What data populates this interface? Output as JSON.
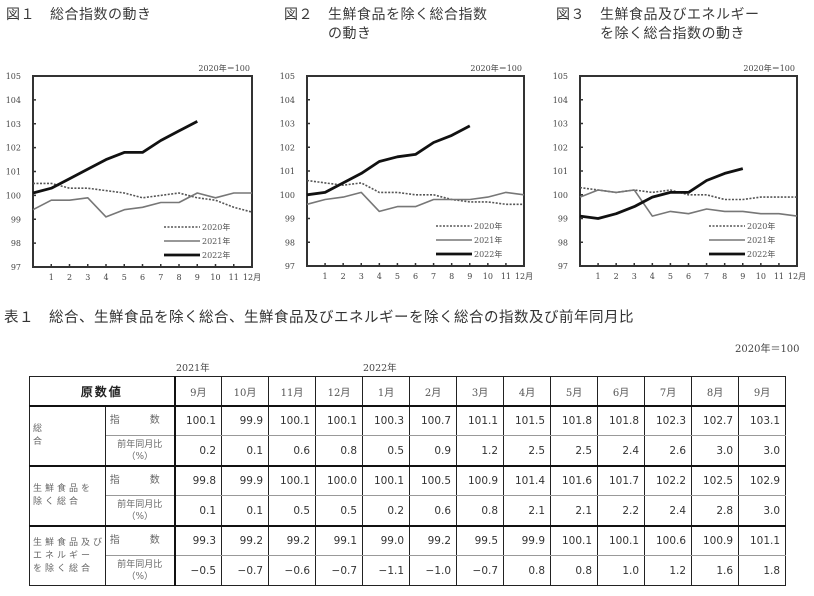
{
  "figures": [
    {
      "id": "fig1",
      "number": "図１",
      "title_lines": [
        "総合指数の動き"
      ],
      "unit": "2020年＝100"
    },
    {
      "id": "fig2",
      "number": "図２",
      "title_lines": [
        "生鮮食品を除く総合指数",
        "の動き"
      ],
      "unit": "2020年＝100"
    },
    {
      "id": "fig3",
      "number": "図３",
      "title_lines": [
        "生鮮食品及びエネルギー",
        "を除く総合指数の動き"
      ],
      "unit": "2020年＝100"
    }
  ],
  "chart_data": [
    {
      "type": "line",
      "title": "図１ 総合指数の動き",
      "unit_note": "2020年＝100",
      "x": [
        "",
        "1",
        "2",
        "3",
        "4",
        "5",
        "6",
        "7",
        "8",
        "9",
        "10",
        "11",
        "12月"
      ],
      "yticks": [
        97,
        98,
        99,
        100,
        101,
        102,
        103,
        104,
        105
      ],
      "ylim": [
        97,
        105
      ],
      "grid": false,
      "legend_position": "lower right",
      "series": [
        {
          "name": "2020年",
          "style": "dotted",
          "values": [
            100.5,
            100.5,
            100.3,
            100.3,
            100.2,
            100.1,
            99.9,
            100.0,
            100.1,
            99.9,
            99.8,
            99.5,
            99.3
          ]
        },
        {
          "name": "2021年",
          "style": "thin",
          "values": [
            99.4,
            99.8,
            99.8,
            99.9,
            99.1,
            99.4,
            99.5,
            99.7,
            99.7,
            100.1,
            99.9,
            100.1,
            100.1
          ]
        },
        {
          "name": "2022年",
          "style": "thick",
          "values": [
            100.1,
            100.3,
            100.7,
            101.1,
            101.5,
            101.8,
            101.8,
            102.3,
            102.7,
            103.1
          ]
        }
      ]
    },
    {
      "type": "line",
      "title": "図２ 生鮮食品を除く総合指数の動き",
      "unit_note": "2020年＝100",
      "x": [
        "",
        "1",
        "2",
        "3",
        "4",
        "5",
        "6",
        "7",
        "8",
        "9",
        "10",
        "11",
        "12月"
      ],
      "yticks": [
        97,
        98,
        99,
        100,
        101,
        102,
        103,
        104,
        105
      ],
      "ylim": [
        97,
        105
      ],
      "grid": false,
      "legend_position": "lower right",
      "series": [
        {
          "name": "2020年",
          "style": "dotted",
          "values": [
            100.6,
            100.5,
            100.4,
            100.5,
            100.1,
            100.1,
            100.0,
            100.0,
            99.8,
            99.7,
            99.7,
            99.6,
            99.6
          ]
        },
        {
          "name": "2021年",
          "style": "thin",
          "values": [
            99.6,
            99.8,
            99.9,
            100.1,
            99.3,
            99.5,
            99.5,
            99.8,
            99.8,
            99.8,
            99.9,
            100.1,
            100.0
          ]
        },
        {
          "name": "2022年",
          "style": "thick",
          "values": [
            100.0,
            100.1,
            100.5,
            100.9,
            101.4,
            101.6,
            101.7,
            102.2,
            102.5,
            102.9
          ]
        }
      ]
    },
    {
      "type": "line",
      "title": "図３ 生鮮食品及びエネルギーを除く総合指数の動き",
      "unit_note": "2020年＝100",
      "x": [
        "",
        "1",
        "2",
        "3",
        "4",
        "5",
        "6",
        "7",
        "8",
        "9",
        "10",
        "11",
        "12月"
      ],
      "yticks": [
        97,
        98,
        99,
        100,
        101,
        102,
        103,
        104,
        105
      ],
      "ylim": [
        97,
        105
      ],
      "grid": false,
      "legend_position": "lower right",
      "series": [
        {
          "name": "2020年",
          "style": "dotted",
          "values": [
            100.3,
            100.2,
            100.1,
            100.2,
            100.1,
            100.2,
            100.0,
            100.0,
            99.8,
            99.8,
            99.9,
            99.9,
            99.9
          ]
        },
        {
          "name": "2021年",
          "style": "thin",
          "values": [
            99.9,
            100.2,
            100.1,
            100.2,
            99.1,
            99.3,
            99.2,
            99.4,
            99.3,
            99.3,
            99.2,
            99.2,
            99.1
          ]
        },
        {
          "name": "2022年",
          "style": "thick",
          "values": [
            99.1,
            99.0,
            99.2,
            99.5,
            99.9,
            100.1,
            100.1,
            100.6,
            100.9,
            101.1
          ]
        }
      ]
    }
  ],
  "table": {
    "title": "表１　総合、生鮮食品を除く総合、生鮮食品及びエネルギーを除く総合の指数及び前年同月比",
    "unit": "2020年＝100",
    "year_labels": [
      {
        "label": "2021年",
        "at_col": 0
      },
      {
        "label": "2022年",
        "at_col": 4
      }
    ],
    "corner_header": "原数値",
    "months": [
      "9月",
      "10月",
      "11月",
      "12月",
      "1月",
      "2月",
      "3月",
      "4月",
      "5月",
      "6月",
      "7月",
      "8月",
      "9月"
    ],
    "index_label": "指　数",
    "yoy_label_line1": "前年同月比",
    "yoy_label_line2": "（%）",
    "groups": [
      {
        "name_lines": [
          "総　　　　　合"
        ],
        "index": [
          "100.1",
          "99.9",
          "100.1",
          "100.1",
          "100.3",
          "100.7",
          "101.1",
          "101.5",
          "101.8",
          "101.8",
          "102.3",
          "102.7",
          "103.1"
        ],
        "yoy": [
          "0.2",
          "0.1",
          "0.6",
          "0.8",
          "0.5",
          "0.9",
          "1.2",
          "2.5",
          "2.5",
          "2.4",
          "2.6",
          "3.0",
          "3.0"
        ]
      },
      {
        "name_lines": [
          "生鮮食品を",
          "除く総合"
        ],
        "index": [
          "99.8",
          "99.9",
          "100.1",
          "100.0",
          "100.1",
          "100.5",
          "100.9",
          "101.4",
          "101.6",
          "101.7",
          "102.2",
          "102.5",
          "102.9"
        ],
        "yoy": [
          "0.1",
          "0.1",
          "0.5",
          "0.5",
          "0.2",
          "0.6",
          "0.8",
          "2.1",
          "2.1",
          "2.2",
          "2.4",
          "2.8",
          "3.0"
        ]
      },
      {
        "name_lines": [
          "生鮮食品及び",
          "エネルギー",
          "を除く総合"
        ],
        "index": [
          "99.3",
          "99.2",
          "99.2",
          "99.1",
          "99.0",
          "99.2",
          "99.5",
          "99.9",
          "100.1",
          "100.1",
          "100.6",
          "100.9",
          "101.1"
        ],
        "yoy": [
          "−0.5",
          "−0.7",
          "−0.6",
          "−0.7",
          "−1.1",
          "−1.0",
          "−0.7",
          "0.8",
          "0.8",
          "1.0",
          "1.2",
          "1.6",
          "1.8"
        ]
      }
    ]
  }
}
